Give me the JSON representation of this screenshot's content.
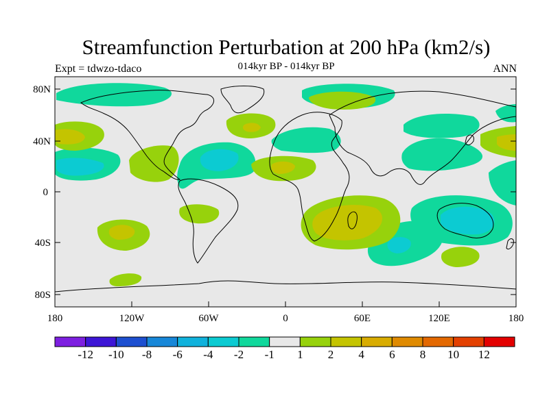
{
  "header": {
    "title": "Streamfunction Perturbation at 200 hPa (km2/s)",
    "subtitle": "014kyr BP - 014kyr BP",
    "left_label": "Expt = tdwzo-tdaco",
    "right_label": "ANN"
  },
  "axes": {
    "lat_ticks": [
      "80N",
      "40N",
      "0",
      "40S",
      "80S"
    ],
    "lon_ticks": [
      "180",
      "120W",
      "60W",
      "0",
      "60E",
      "120E",
      "180"
    ]
  },
  "colorbar": {
    "colors": [
      "#7d1fe0",
      "#3d16d6",
      "#1d4fd0",
      "#1787d8",
      "#10b2dc",
      "#0ccbd2",
      "#10d89c",
      "#e8e8e8",
      "#97d20c",
      "#c4c400",
      "#d8ac00",
      "#df8a00",
      "#e36800",
      "#e34000",
      "#e30000"
    ],
    "labels": [
      "-12",
      "-10",
      "-8",
      "-6",
      "-4",
      "-2",
      "-1",
      "1",
      "2",
      "4",
      "6",
      "8",
      "10",
      "12"
    ]
  },
  "colors": {
    "background": "#e8e8e8",
    "neg1": "#10d89c",
    "neg2": "#0ccbd2",
    "neg4": "#10b2dc",
    "pos1": "#97d20c",
    "pos2": "#c4c400",
    "pos4": "#d8ac00"
  }
}
